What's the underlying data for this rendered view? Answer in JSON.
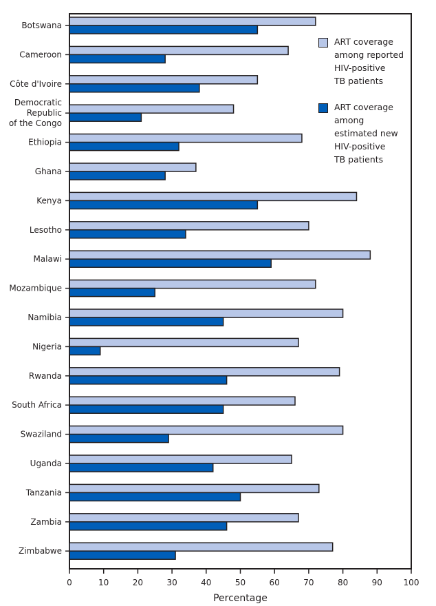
{
  "chart_data": {
    "type": "bar",
    "orientation": "horizontal",
    "categories": [
      "Botswana",
      "Cameroon",
      "Côte d'Ivoire",
      "Democratic Republic of the Congo",
      "Ethiopia",
      "Ghana",
      "Kenya",
      "Lesotho",
      "Malawi",
      "Mozambique",
      "Namibia",
      "Nigeria",
      "Rwanda",
      "South Africa",
      "Swaziland",
      "Uganda",
      "Tanzania",
      "Zambia",
      "Zimbabwe"
    ],
    "category_lines": [
      [
        "Botswana"
      ],
      [
        "Cameroon"
      ],
      [
        "Côte d'Ivoire"
      ],
      [
        "Democratic",
        "Republic",
        "of the Congo"
      ],
      [
        "Ethiopia"
      ],
      [
        "Ghana"
      ],
      [
        "Kenya"
      ],
      [
        "Lesotho"
      ],
      [
        "Malawi"
      ],
      [
        "Mozambique"
      ],
      [
        "Namibia"
      ],
      [
        "Nigeria"
      ],
      [
        "Rwanda"
      ],
      [
        "South Africa"
      ],
      [
        "Swaziland"
      ],
      [
        "Uganda"
      ],
      [
        "Tanzania"
      ],
      [
        "Zambia"
      ],
      [
        "Zimbabwe"
      ]
    ],
    "series": [
      {
        "name": "ART coverage among reported HIV-positive TB patients",
        "legend_lines": [
          "ART coverage",
          "among reported",
          "HIV-positive",
          "TB patients"
        ],
        "color": "#b8c7e8",
        "values": [
          72,
          64,
          55,
          48,
          68,
          37,
          84,
          70,
          88,
          72,
          80,
          67,
          79,
          66,
          80,
          65,
          73,
          67,
          77
        ]
      },
      {
        "name": "ART coverage among estimated new HIV-positive TB patients",
        "legend_lines": [
          "ART coverage",
          "among",
          "estimated new",
          "HIV-positive",
          "TB patients"
        ],
        "color": "#005eb8",
        "values": [
          55,
          28,
          38,
          21,
          32,
          28,
          55,
          34,
          59,
          25,
          45,
          9,
          46,
          45,
          29,
          42,
          50,
          46,
          31
        ]
      }
    ],
    "xlabel": "Percentage",
    "ylabel": "",
    "xlim": [
      0,
      100
    ],
    "xticks": [
      0,
      10,
      20,
      30,
      40,
      50,
      60,
      70,
      80,
      90,
      100
    ],
    "grid": false,
    "legend_position": "top-right"
  }
}
